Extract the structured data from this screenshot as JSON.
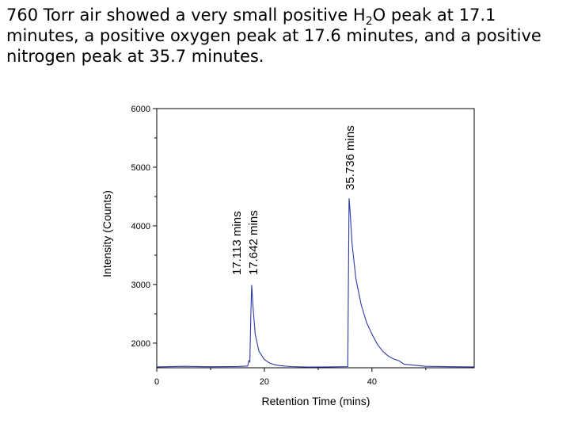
{
  "caption": {
    "part1": "760 Torr air showed a very small positive H",
    "sub": "2",
    "part2": "O peak at 17.1 minutes, a positive oxygen peak at 17.6 minutes, and a positive nitrogen peak at 35.7 minutes."
  },
  "chart_data": {
    "type": "line",
    "title": "",
    "xlabel": "Retention Time (mins)",
    "ylabel": "Intensity (Counts)",
    "xlim": [
      0,
      59
    ],
    "ylim": [
      1580,
      6000
    ],
    "x_ticks": [
      0,
      20,
      40
    ],
    "y_ticks": [
      2000,
      3000,
      4000,
      5000,
      6000
    ],
    "line_color": "#2a3aa8",
    "series": [
      {
        "name": "760 Torr air",
        "x": [
          0,
          5,
          10,
          15,
          16.9,
          17.113,
          17.3,
          17.5,
          17.642,
          17.9,
          18.3,
          19,
          20,
          21,
          22,
          23,
          25,
          28,
          32,
          35.5,
          35.736,
          35.9,
          36.3,
          37,
          38,
          39,
          40,
          41,
          42,
          43,
          44,
          45,
          46,
          50,
          55,
          59
        ],
        "y": [
          1595,
          1605,
          1598,
          1602,
          1610,
          1700,
          1680,
          2500,
          2990,
          2600,
          2150,
          1860,
          1720,
          1660,
          1630,
          1615,
          1600,
          1592,
          1595,
          1600,
          4470,
          4300,
          3700,
          3100,
          2650,
          2350,
          2150,
          1980,
          1860,
          1780,
          1730,
          1700,
          1640,
          1605,
          1598,
          1595
        ]
      }
    ],
    "annotations": [
      "17.113 mins",
      "17.642 mins",
      "35.736 mins"
    ]
  }
}
